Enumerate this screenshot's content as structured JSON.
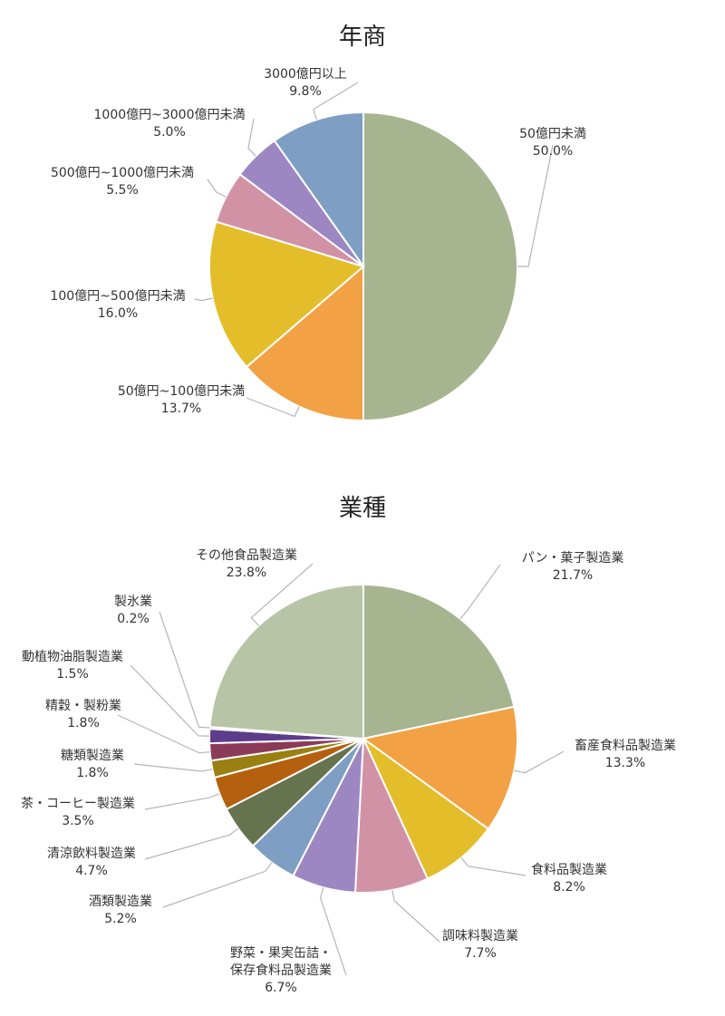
{
  "chart_data": [
    {
      "type": "pie",
      "title": "年商",
      "start": "top",
      "direction": "clockwise",
      "slices": [
        {
          "label": "50億円未満",
          "value": 50.0,
          "pct": "50.0%",
          "color": "#a6b590"
        },
        {
          "label": "50億円~100億円未満",
          "value": 13.7,
          "pct": "13.7%",
          "color": "#f2a244"
        },
        {
          "label": "100億円~500億円未満",
          "value": 16.0,
          "pct": "16.0%",
          "color": "#e4bd2b"
        },
        {
          "label": "500億円~1000億円未満",
          "value": 5.5,
          "pct": "5.5%",
          "color": "#d292a6"
        },
        {
          "label": "1000億円~3000億円未満",
          "value": 5.0,
          "pct": "5.0%",
          "color": "#9c87c3"
        },
        {
          "label": "3000億円以上",
          "value": 9.8,
          "pct": "9.8%",
          "color": "#7f9ec4"
        }
      ]
    },
    {
      "type": "pie",
      "title": "業種",
      "start": "top",
      "direction": "clockwise",
      "slices": [
        {
          "label": "パン・菓子製造業",
          "value": 21.7,
          "pct": "21.7%",
          "color": "#a6b590"
        },
        {
          "label": "畜産食料品製造業",
          "value": 13.3,
          "pct": "13.3%",
          "color": "#f2a244"
        },
        {
          "label": "食料品製造業",
          "value": 8.2,
          "pct": "8.2%",
          "color": "#e4bd2b"
        },
        {
          "label": "調味料製造業",
          "value": 7.7,
          "pct": "7.7%",
          "color": "#d292a6"
        },
        {
          "label": "野菜・果実缶詰・\n保存食料品製造業",
          "value": 6.7,
          "pct": "6.7%",
          "color": "#9c87c3"
        },
        {
          "label": "酒類製造業",
          "value": 5.2,
          "pct": "5.2%",
          "color": "#7f9ec4"
        },
        {
          "label": "清涼飲料製造業",
          "value": 4.7,
          "pct": "4.7%",
          "color": "#66734f"
        },
        {
          "label": "茶・コーヒー製造業",
          "value": 3.5,
          "pct": "3.5%",
          "color": "#b5600f"
        },
        {
          "label": "糖類製造業",
          "value": 1.8,
          "pct": "1.8%",
          "color": "#9a7f12"
        },
        {
          "label": "精穀・製粉業",
          "value": 1.8,
          "pct": "1.8%",
          "color": "#8b3a57"
        },
        {
          "label": "動植物油脂製造業",
          "value": 1.5,
          "pct": "1.5%",
          "color": "#5d3d8b"
        },
        {
          "label": "製氷業",
          "value": 0.2,
          "pct": "0.2%",
          "color": "#3f5f8f"
        },
        {
          "label": "その他食品製造業",
          "value": 23.8,
          "pct": "23.8%",
          "color": "#b7c4a6"
        }
      ]
    }
  ]
}
